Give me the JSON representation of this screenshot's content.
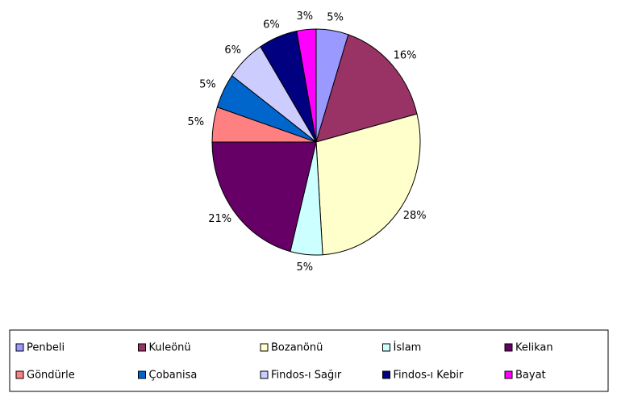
{
  "chart_data": {
    "type": "pie",
    "categories": [
      "Penbeli",
      "Kuleönü",
      "Bozanönü",
      "İslam",
      "Kelikan",
      "Göndürle",
      "Çobanisa",
      "Findos-ı Sağır",
      "Findos-ı Kebir",
      "Bayat"
    ],
    "values": [
      5,
      16,
      28,
      5,
      21,
      5,
      5,
      6,
      6,
      3
    ],
    "value_labels": [
      "5%",
      "16%",
      "28%",
      "5%",
      "21%",
      "5%",
      "5%",
      "6%",
      "6%",
      "3%"
    ],
    "colors": [
      "#9999ff",
      "#993366",
      "#ffffcc",
      "#ccffff",
      "#660066",
      "#ff8080",
      "#0066cc",
      "#ccccff",
      "#000080",
      "#ff00ff"
    ],
    "legend": "bottom"
  }
}
